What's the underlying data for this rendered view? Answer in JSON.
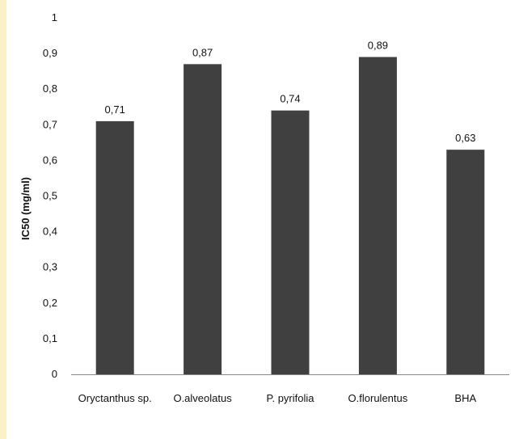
{
  "chart_data": {
    "type": "bar",
    "title": "",
    "xlabel": "",
    "ylabel": "IC50 (mg/ml)",
    "categories": [
      "Oryctanthus sp.",
      "O.alveolatus",
      "P. pyrifolia",
      "O.florulentus",
      "BHA"
    ],
    "values": [
      0.71,
      0.87,
      0.74,
      0.89,
      0.63
    ],
    "data_labels": [
      "0,71",
      "0,87",
      "0,74",
      "0,89",
      "0,63"
    ],
    "ylim": [
      0,
      1
    ],
    "yticks": [
      0,
      0.1,
      0.2,
      0.3,
      0.4,
      0.5,
      0.6,
      0.7,
      0.8,
      0.9,
      1
    ],
    "ytick_labels": [
      "0",
      "0,1",
      "0,2",
      "0,3",
      "0,4",
      "0,5",
      "0,6",
      "0,7",
      "0,8",
      "0,9",
      "1"
    ],
    "grid": false,
    "legend": "none",
    "bar_color": "#404040",
    "background_color": "#fbf0c8"
  }
}
